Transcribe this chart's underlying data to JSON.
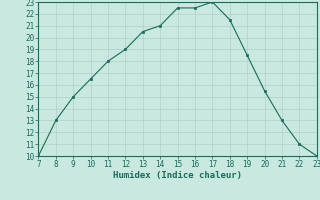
{
  "x": [
    7,
    8,
    9,
    10,
    11,
    12,
    13,
    14,
    15,
    16,
    17,
    18,
    19,
    20,
    21,
    22,
    23
  ],
  "y": [
    10,
    13,
    15,
    16.5,
    18,
    19,
    20.5,
    21,
    22.5,
    22.5,
    23,
    21.5,
    18.5,
    15.5,
    13,
    11,
    10
  ],
  "xlim": [
    7,
    23
  ],
  "ylim": [
    10,
    23
  ],
  "xlabel": "Humidex (Indice chaleur)",
  "xticks": [
    7,
    8,
    9,
    10,
    11,
    12,
    13,
    14,
    15,
    16,
    17,
    18,
    19,
    20,
    21,
    22,
    23
  ],
  "yticks": [
    10,
    11,
    12,
    13,
    14,
    15,
    16,
    17,
    18,
    19,
    20,
    21,
    22,
    23
  ],
  "line_color": "#1a6b5a",
  "marker_color": "#1a6b5a",
  "bg_color": "#c8e8e0",
  "grid_color": "#a8ccc4",
  "axis_fontsize": 6.5,
  "tick_fontsize": 5.5
}
